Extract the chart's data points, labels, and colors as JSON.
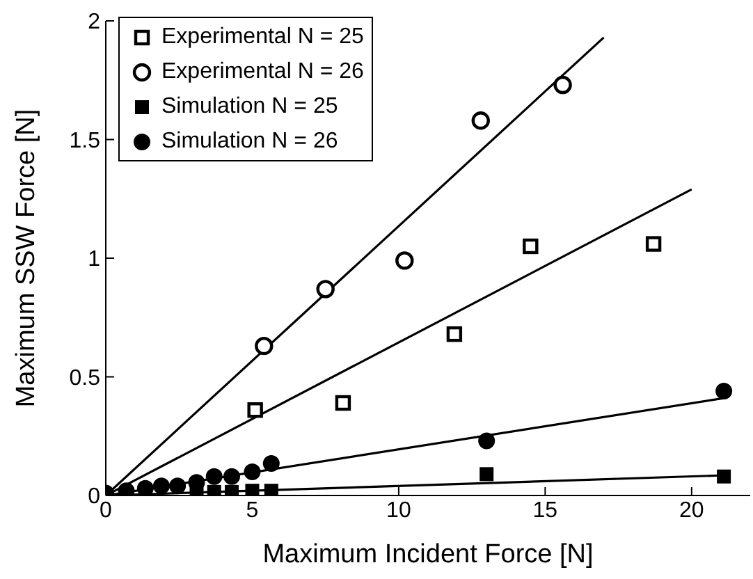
{
  "chart_data": {
    "type": "scatter",
    "xlabel": "Maximum Incident Force [N]",
    "ylabel": "Maximum SSW Force [N]",
    "xlim": [
      0,
      22
    ],
    "xticks": [
      0,
      5,
      10,
      15,
      20
    ],
    "ylim": [
      0,
      2
    ],
    "yticks": [
      0,
      0.5,
      1,
      1.5,
      2
    ],
    "grid": false,
    "legend": "top left",
    "series": [
      {
        "name": "Experimental N = 25",
        "marker": "square",
        "color": "#ffffff",
        "x": [
          5.1,
          8.1,
          11.9,
          14.5,
          18.7
        ],
        "values": [
          0.36,
          0.39,
          0.68,
          1.05,
          1.06
        ]
      },
      {
        "name": "Experimental N = 26",
        "marker": "circle",
        "color": "#ffffff",
        "x": [
          5.4,
          7.5,
          10.2,
          12.8,
          15.6
        ],
        "values": [
          0.63,
          0.87,
          0.99,
          1.58,
          1.73
        ]
      },
      {
        "name": "Simulation N = 25",
        "marker": "square",
        "color": "#000000",
        "x": [
          3.1,
          3.7,
          4.3,
          5.0,
          5.65,
          13.0,
          21.1
        ],
        "values": [
          0.01,
          0.015,
          0.015,
          0.02,
          0.02,
          0.09,
          0.08
        ]
      },
      {
        "name": "Simulation N = 26",
        "marker": "circle",
        "color": "#000000",
        "x": [
          0,
          0.7,
          1.35,
          1.9,
          2.45,
          3.1,
          3.7,
          4.3,
          5.0,
          5.65,
          13.0,
          21.1
        ],
        "values": [
          0.01,
          0.02,
          0.03,
          0.04,
          0.04,
          0.055,
          0.08,
          0.08,
          0.1,
          0.135,
          0.23,
          0.44
        ]
      },
      {
        "type": "line",
        "marker": "none",
        "color": "#000000",
        "x": [
          0,
          17.0
        ],
        "values": [
          0,
          1.93
        ]
      },
      {
        "type": "line",
        "marker": "none",
        "color": "#000000",
        "x": [
          0,
          20.0
        ],
        "values": [
          0,
          1.29
        ]
      },
      {
        "type": "line",
        "marker": "none",
        "color": "#000000",
        "x": [
          0,
          21.1
        ],
        "values": [
          0,
          0.41
        ]
      },
      {
        "type": "line",
        "marker": "none",
        "color": "#000000",
        "x": [
          0,
          21.1
        ],
        "values": [
          0,
          0.085
        ]
      }
    ]
  }
}
